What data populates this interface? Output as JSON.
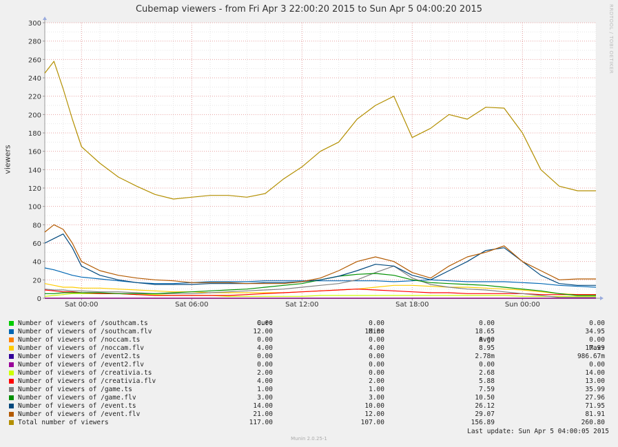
{
  "title": "Cubemap viewers - from Fri Apr  3 22:00:20 2015 to Sun Apr  5 04:00:20 2015",
  "watermark": "RRDTOOL / TOBI OETIKER",
  "ylabel": "viewers",
  "chart_data": {
    "type": "line",
    "title": "Cubemap viewers - from Fri Apr  3 22:00:20 2015 to Sun Apr  5 04:00:20 2015",
    "ylabel": "viewers",
    "xlabel": "",
    "x_range": [
      "Fri Apr 3 22:00:20 2015",
      "Sun Apr 5 04:00:20 2015"
    ],
    "x_ticks": [
      {
        "hour": 2,
        "label": "Sat 00:00"
      },
      {
        "hour": 8,
        "label": "Sat 06:00"
      },
      {
        "hour": 14,
        "label": "Sat 12:00"
      },
      {
        "hour": 20,
        "label": "Sat 18:00"
      },
      {
        "hour": 26,
        "label": "Sun 00:00"
      }
    ],
    "x_unit": "hours since Fri 22:00",
    "x_max": 30,
    "ylim": [
      0,
      300
    ],
    "y_ticks": [
      0,
      20,
      40,
      60,
      80,
      100,
      120,
      140,
      160,
      180,
      200,
      220,
      240,
      260,
      280,
      300
    ],
    "grid": true,
    "x": [
      0,
      0.5,
      1,
      1.5,
      2,
      3,
      4,
      5,
      6,
      7,
      8,
      9,
      10,
      11,
      12,
      13,
      14,
      15,
      16,
      17,
      18,
      19,
      20,
      21,
      22,
      23,
      24,
      25,
      26,
      27,
      28,
      29,
      30
    ],
    "series": [
      {
        "name": "Number of viewers of /southcam.ts",
        "color": "#00cc00",
        "values": [
          0,
          0,
          0,
          0,
          0,
          0,
          0,
          0,
          0,
          0,
          0,
          0,
          0,
          0,
          0,
          0,
          0,
          0,
          0,
          0,
          0,
          0,
          0,
          0,
          0,
          0,
          0,
          0,
          0,
          0,
          0,
          0,
          0
        ]
      },
      {
        "name": "Number of viewers of /southcam.flv",
        "color": "#0066b3",
        "values": [
          33,
          31,
          28,
          25,
          23,
          21,
          19,
          17,
          16,
          16,
          17,
          18,
          18,
          18,
          19,
          19,
          19,
          19,
          19,
          19,
          19,
          18,
          19,
          20,
          19,
          18,
          18,
          18,
          17,
          16,
          14,
          13,
          12
        ]
      },
      {
        "name": "Number of viewers of /noccam.ts",
        "color": "#ff8000",
        "values": [
          0,
          0,
          0,
          0,
          0,
          0,
          0,
          0,
          0,
          0,
          0,
          0,
          0,
          0,
          0,
          0,
          0,
          0,
          0,
          0,
          0,
          0,
          0,
          0,
          0,
          0,
          0,
          0,
          0,
          0,
          0,
          0,
          0
        ]
      },
      {
        "name": "Number of viewers of /noccam.flv",
        "color": "#ffcc00",
        "values": [
          16,
          14,
          12,
          12,
          11,
          11,
          10,
          9,
          8,
          7,
          7,
          6,
          6,
          6,
          6,
          6,
          7,
          8,
          9,
          10,
          12,
          14,
          14,
          13,
          12,
          12,
          11,
          10,
          9,
          7,
          5,
          4,
          4
        ]
      },
      {
        "name": "Number of viewers of /event2.ts",
        "color": "#330099",
        "values": [
          0,
          0,
          0,
          0,
          0,
          0,
          0,
          0,
          0,
          0,
          0,
          0,
          0,
          0,
          0,
          0,
          0,
          0,
          0,
          0,
          0,
          0,
          0,
          0,
          0,
          0,
          0,
          0,
          0,
          0,
          0,
          0,
          0
        ]
      },
      {
        "name": "Number of viewers of /event2.flv",
        "color": "#990099",
        "values": [
          0,
          0,
          0,
          0,
          0,
          0,
          0,
          0,
          0,
          0,
          0,
          0,
          0,
          0,
          0,
          0,
          0,
          0,
          0,
          0,
          0,
          0,
          0,
          0,
          0,
          0,
          0,
          0,
          0,
          0,
          0,
          0,
          0
        ]
      },
      {
        "name": "Number of viewers of /creativia.ts",
        "color": "#ccff00",
        "values": [
          2,
          3,
          4,
          5,
          5,
          5,
          5,
          4,
          4,
          3,
          3,
          3,
          2,
          2,
          2,
          2,
          2,
          3,
          3,
          3,
          3,
          3,
          3,
          3,
          3,
          3,
          3,
          3,
          2,
          2,
          2,
          2,
          2
        ]
      },
      {
        "name": "Number of viewers of /creativia.flv",
        "color": "#ff0000",
        "values": [
          9,
          8,
          7,
          7,
          6,
          5,
          5,
          4,
          3,
          3,
          3,
          3,
          3,
          4,
          5,
          6,
          7,
          8,
          9,
          10,
          9,
          8,
          7,
          6,
          6,
          5,
          5,
          5,
          5,
          4,
          4,
          4,
          4
        ]
      },
      {
        "name": "Number of viewers of /game.ts",
        "color": "#808080",
        "values": [
          10,
          9,
          9,
          8,
          8,
          7,
          7,
          6,
          5,
          5,
          5,
          6,
          7,
          8,
          9,
          10,
          12,
          14,
          16,
          20,
          28,
          35,
          22,
          15,
          12,
          10,
          9,
          7,
          5,
          3,
          1,
          1,
          1
        ]
      },
      {
        "name": "Number of viewers of /game.flv",
        "color": "#008f00",
        "values": [
          5,
          5,
          6,
          6,
          6,
          6,
          5,
          5,
          5,
          6,
          7,
          8,
          9,
          10,
          12,
          14,
          16,
          20,
          24,
          26,
          27,
          25,
          20,
          17,
          16,
          15,
          14,
          12,
          10,
          8,
          5,
          3,
          3
        ]
      },
      {
        "name": "Number of viewers of /event.ts",
        "color": "#00487d",
        "values": [
          60,
          65,
          70,
          55,
          35,
          25,
          20,
          17,
          15,
          15,
          15,
          16,
          16,
          16,
          17,
          17,
          18,
          20,
          24,
          30,
          37,
          35,
          25,
          20,
          30,
          40,
          52,
          55,
          40,
          25,
          16,
          14,
          14
        ]
      },
      {
        "name": "Number of viewers of /event.flv",
        "color": "#b35a00",
        "values": [
          72,
          80,
          75,
          60,
          40,
          30,
          25,
          22,
          20,
          19,
          17,
          17,
          17,
          16,
          16,
          16,
          18,
          22,
          30,
          40,
          45,
          40,
          28,
          22,
          35,
          45,
          50,
          57,
          40,
          30,
          20,
          21,
          21
        ]
      },
      {
        "name": "Total number of viewers",
        "color": "#b38f00",
        "values": [
          245,
          258,
          228,
          195,
          165,
          147,
          132,
          122,
          113,
          108,
          110,
          112,
          112,
          110,
          114,
          130,
          143,
          160,
          170,
          195,
          210,
          220,
          175,
          185,
          200,
          195,
          208,
          207,
          180,
          140,
          122,
          117,
          117
        ]
      }
    ]
  },
  "legend": {
    "headers": [
      "Cur:",
      "Min:",
      "Avg:",
      "Max:"
    ],
    "rows": [
      {
        "label": "Number of viewers of /southcam.ts",
        "color": "#00cc00",
        "cur": "0.00",
        "min": "0.00",
        "avg": "0.00",
        "max": "0.00"
      },
      {
        "label": "Number of viewers of /southcam.flv",
        "color": "#0066b3",
        "cur": "12.00",
        "min": "10.00",
        "avg": "18.65",
        "max": "34.95"
      },
      {
        "label": "Number of viewers of /noccam.ts",
        "color": "#ff8000",
        "cur": "0.00",
        "min": "0.00",
        "avg": "0.00",
        "max": "0.00"
      },
      {
        "label": "Number of viewers of /noccam.flv",
        "color": "#ffcc00",
        "cur": "4.00",
        "min": "4.00",
        "avg": "8.95",
        "max": "17.99"
      },
      {
        "label": "Number of viewers of /event2.ts",
        "color": "#330099",
        "cur": "0.00",
        "min": "0.00",
        "avg": "2.78m",
        "max": "986.67m"
      },
      {
        "label": "Number of viewers of /event2.flv",
        "color": "#990099",
        "cur": "0.00",
        "min": "0.00",
        "avg": "0.00",
        "max": "0.00"
      },
      {
        "label": "Number of viewers of /creativia.ts",
        "color": "#ccff00",
        "cur": "2.00",
        "min": "0.00",
        "avg": "2.68",
        "max": "14.00"
      },
      {
        "label": "Number of viewers of /creativia.flv",
        "color": "#ff0000",
        "cur": "4.00",
        "min": "2.00",
        "avg": "5.88",
        "max": "13.00"
      },
      {
        "label": "Number of viewers of /game.ts",
        "color": "#808080",
        "cur": "1.00",
        "min": "1.00",
        "avg": "7.59",
        "max": "35.99"
      },
      {
        "label": "Number of viewers of /game.flv",
        "color": "#008f00",
        "cur": "3.00",
        "min": "3.00",
        "avg": "10.50",
        "max": "27.96"
      },
      {
        "label": "Number of viewers of /event.ts",
        "color": "#00487d",
        "cur": "14.00",
        "min": "10.00",
        "avg": "26.12",
        "max": "71.95"
      },
      {
        "label": "Number of viewers of /event.flv",
        "color": "#b35a00",
        "cur": "21.00",
        "min": "12.00",
        "avg": "29.07",
        "max": "81.91"
      },
      {
        "label": "Total number of viewers",
        "color": "#b38f00",
        "cur": "117.00",
        "min": "107.00",
        "avg": "156.89",
        "max": "260.80"
      }
    ]
  },
  "last_update": "Last update: Sun Apr  5 04:00:05 2015",
  "footer": "Munin 2.0.25-1"
}
